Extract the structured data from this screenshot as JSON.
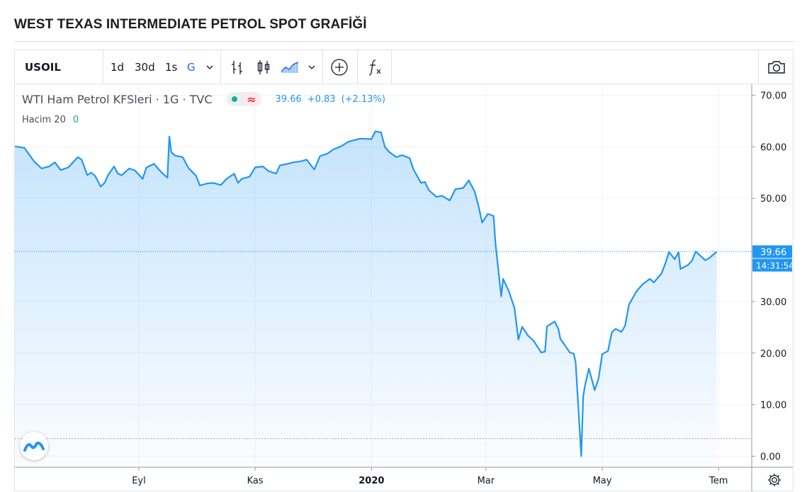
{
  "page": {
    "title": "WEST TEXAS INTERMEDIATE PETROL SPOT GRAFİĞİ"
  },
  "toolbar": {
    "symbol": "USOIL",
    "intervals": [
      "1d",
      "30d",
      "1s",
      "G"
    ],
    "active_interval": "G",
    "icons": [
      "chevron-down-icon",
      "bar-style-icon",
      "candlestick-icon",
      "area-chart-icon",
      "chevron-down-icon",
      "add-indicator-icon",
      "function-icon",
      "camera-icon"
    ]
  },
  "legend": {
    "name": "WTI Ham Petrol KFSleri · 1G · TVC",
    "last": "39.66",
    "change": "+0.83",
    "change_pct": "(+2.13%)",
    "volume_label": "Hacim 20",
    "volume_value": "0"
  },
  "price_label": {
    "value": "39.66",
    "time": "14:31:54"
  },
  "colors": {
    "line": "#2196f3",
    "fill_top": "#cfe5f9",
    "accent_blue": "#2196f3",
    "green": "#26a69a",
    "red": "#f23645"
  },
  "chart_data": {
    "type": "area",
    "title": "",
    "xlabel": "",
    "ylabel": "",
    "ylim": [
      -2,
      72
    ],
    "yticks": [
      "70.00",
      "60.00",
      "50.00",
      "40.00",
      "30.00",
      "20.00",
      "10.00",
      "0.00"
    ],
    "ytick_values": [
      70,
      60,
      50,
      40,
      30,
      20,
      10,
      0
    ],
    "xticks": [
      {
        "label": "Eyl",
        "x": "2019-09-01"
      },
      {
        "label": "Kas",
        "x": "2019-11-01"
      },
      {
        "label": "2020",
        "x": "2020-01-01"
      },
      {
        "label": "Mar",
        "x": "2020-03-01"
      },
      {
        "label": "May",
        "x": "2020-05-01"
      },
      {
        "label": "Tem",
        "x": "2020-07-01"
      }
    ],
    "xlim": [
      "2019-06-28",
      "2020-07-18"
    ],
    "last_value": 39.66,
    "series": [
      {
        "values": [
          [
            "2019-06-28",
            60.1
          ],
          [
            "2019-07-03",
            59.8
          ],
          [
            "2019-07-08",
            57.2
          ],
          [
            "2019-07-12",
            55.8
          ],
          [
            "2019-07-16",
            56.2
          ],
          [
            "2019-07-19",
            57.0
          ],
          [
            "2019-07-22",
            55.5
          ],
          [
            "2019-07-26",
            56.0
          ],
          [
            "2019-07-31",
            58.0
          ],
          [
            "2019-08-02",
            57.5
          ],
          [
            "2019-08-05",
            54.5
          ],
          [
            "2019-08-07",
            55.0
          ],
          [
            "2019-08-09",
            54.4
          ],
          [
            "2019-08-12",
            52.3
          ],
          [
            "2019-08-14",
            53.0
          ],
          [
            "2019-08-16",
            54.6
          ],
          [
            "2019-08-19",
            56.2
          ],
          [
            "2019-08-21",
            54.8
          ],
          [
            "2019-08-23",
            54.5
          ],
          [
            "2019-08-27",
            55.8
          ],
          [
            "2019-08-30",
            55.4
          ],
          [
            "2019-09-03",
            53.8
          ],
          [
            "2019-09-05",
            56.0
          ],
          [
            "2019-09-09",
            56.7
          ],
          [
            "2019-09-11",
            55.8
          ],
          [
            "2019-09-13",
            55.0
          ],
          [
            "2019-09-16",
            54.0
          ],
          [
            "2019-09-17",
            62.0
          ],
          [
            "2019-09-18",
            59.0
          ],
          [
            "2019-09-20",
            58.3
          ],
          [
            "2019-09-24",
            58.0
          ],
          [
            "2019-09-27",
            55.9
          ],
          [
            "2019-10-01",
            54.4
          ],
          [
            "2019-10-03",
            52.5
          ],
          [
            "2019-10-07",
            52.9
          ],
          [
            "2019-10-10",
            53.0
          ],
          [
            "2019-10-14",
            52.6
          ],
          [
            "2019-10-17",
            53.8
          ],
          [
            "2019-10-21",
            54.8
          ],
          [
            "2019-10-23",
            53.0
          ],
          [
            "2019-10-25",
            53.8
          ],
          [
            "2019-10-29",
            54.2
          ],
          [
            "2019-11-01",
            56.0
          ],
          [
            "2019-11-05",
            56.2
          ],
          [
            "2019-11-08",
            55.3
          ],
          [
            "2019-11-12",
            54.8
          ],
          [
            "2019-11-14",
            56.4
          ],
          [
            "2019-11-18",
            56.7
          ],
          [
            "2019-11-21",
            57.0
          ],
          [
            "2019-11-25",
            57.2
          ],
          [
            "2019-11-28",
            57.5
          ],
          [
            "2019-12-02",
            55.6
          ],
          [
            "2019-12-05",
            58.2
          ],
          [
            "2019-12-09",
            58.7
          ],
          [
            "2019-12-12",
            59.5
          ],
          [
            "2019-12-16",
            60.1
          ],
          [
            "2019-12-20",
            61.0
          ],
          [
            "2019-12-26",
            61.6
          ],
          [
            "2020-01-01",
            61.5
          ],
          [
            "2020-01-03",
            63.0
          ],
          [
            "2020-01-06",
            62.8
          ],
          [
            "2020-01-08",
            60.0
          ],
          [
            "2020-01-10",
            59.1
          ],
          [
            "2020-01-14",
            58.0
          ],
          [
            "2020-01-17",
            58.4
          ],
          [
            "2020-01-21",
            57.8
          ],
          [
            "2020-01-23",
            55.6
          ],
          [
            "2020-01-27",
            53.0
          ],
          [
            "2020-01-29",
            53.2
          ],
          [
            "2020-01-31",
            51.6
          ],
          [
            "2020-02-04",
            50.3
          ],
          [
            "2020-02-07",
            50.5
          ],
          [
            "2020-02-11",
            49.6
          ],
          [
            "2020-02-14",
            51.8
          ],
          [
            "2020-02-18",
            52.0
          ],
          [
            "2020-02-21",
            53.5
          ],
          [
            "2020-02-24",
            51.4
          ],
          [
            "2020-02-26",
            48.7
          ],
          [
            "2020-02-28",
            45.3
          ],
          [
            "2020-03-02",
            47.0
          ],
          [
            "2020-03-05",
            46.6
          ],
          [
            "2020-03-06",
            41.3
          ],
          [
            "2020-03-09",
            31.0
          ],
          [
            "2020-03-10",
            34.4
          ],
          [
            "2020-03-13",
            32.0
          ],
          [
            "2020-03-16",
            28.7
          ],
          [
            "2020-03-18",
            22.6
          ],
          [
            "2020-03-20",
            25.1
          ],
          [
            "2020-03-23",
            23.4
          ],
          [
            "2020-03-26",
            22.4
          ],
          [
            "2020-03-30",
            20.1
          ],
          [
            "2020-04-01",
            20.3
          ],
          [
            "2020-04-02",
            25.2
          ],
          [
            "2020-04-06",
            26.1
          ],
          [
            "2020-04-08",
            24.7
          ],
          [
            "2020-04-09",
            22.8
          ],
          [
            "2020-04-14",
            20.1
          ],
          [
            "2020-04-16",
            19.9
          ],
          [
            "2020-04-17",
            18.3
          ],
          [
            "2020-04-20",
            0.0
          ],
          [
            "2020-04-21",
            11.6
          ],
          [
            "2020-04-22",
            13.8
          ],
          [
            "2020-04-24",
            17.0
          ],
          [
            "2020-04-27",
            12.8
          ],
          [
            "2020-04-29",
            15.0
          ],
          [
            "2020-05-01",
            19.8
          ],
          [
            "2020-05-04",
            20.4
          ],
          [
            "2020-05-06",
            24.0
          ],
          [
            "2020-05-08",
            24.7
          ],
          [
            "2020-05-11",
            24.1
          ],
          [
            "2020-05-13",
            25.3
          ],
          [
            "2020-05-15",
            29.4
          ],
          [
            "2020-05-19",
            32.0
          ],
          [
            "2020-05-22",
            33.3
          ],
          [
            "2020-05-26",
            34.4
          ],
          [
            "2020-05-28",
            33.7
          ],
          [
            "2020-06-01",
            35.4
          ],
          [
            "2020-06-03",
            37.3
          ],
          [
            "2020-06-05",
            39.6
          ],
          [
            "2020-06-08",
            38.2
          ],
          [
            "2020-06-10",
            39.6
          ],
          [
            "2020-06-11",
            36.3
          ],
          [
            "2020-06-15",
            37.1
          ],
          [
            "2020-06-17",
            37.9
          ],
          [
            "2020-06-19",
            39.7
          ],
          [
            "2020-06-24",
            38.0
          ],
          [
            "2020-06-26",
            38.4
          ],
          [
            "2020-06-30",
            39.66
          ]
        ]
      }
    ]
  }
}
